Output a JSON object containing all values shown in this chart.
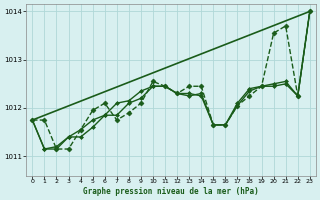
{
  "xlabel": "Graphe pression niveau de la mer (hPa)",
  "bg_color": "#d8f0f0",
  "grid_color": "#b0d8d8",
  "line_color": "#1a5c1a",
  "xlim": [
    -0.5,
    23.5
  ],
  "ylim": [
    1010.6,
    1014.15
  ],
  "yticks": [
    1011,
    1012,
    1013,
    1014
  ],
  "xticks": [
    0,
    1,
    2,
    3,
    4,
    5,
    6,
    7,
    8,
    9,
    10,
    11,
    12,
    13,
    14,
    15,
    16,
    17,
    18,
    19,
    20,
    21,
    22,
    23
  ],
  "series": [
    {
      "x": [
        0,
        1,
        2,
        3,
        4,
        5,
        6,
        7,
        8,
        9,
        10,
        11,
        12,
        13,
        14,
        15,
        16,
        17,
        18,
        19,
        20,
        21,
        22,
        23
      ],
      "y": [
        1011.75,
        1011.75,
        1011.15,
        1011.15,
        1011.55,
        1011.95,
        1012.1,
        1011.75,
        1011.9,
        1012.1,
        1012.55,
        1012.45,
        1012.3,
        1012.45,
        1012.45,
        1011.65,
        1011.65,
        1012.05,
        1012.25,
        1012.45,
        1013.55,
        1013.7,
        1012.25,
        1014.0
      ],
      "linestyle": "--",
      "marker": "D",
      "markersize": 2.5,
      "linewidth": 1.0
    },
    {
      "x": [
        0,
        1,
        2,
        3,
        4,
        5,
        6,
        7,
        8,
        9,
        10,
        11,
        12,
        13,
        14,
        15,
        16,
        17,
        18,
        19,
        20,
        21,
        22,
        23
      ],
      "y": [
        1011.75,
        1011.15,
        1011.15,
        1011.4,
        1011.4,
        1011.6,
        1011.85,
        1011.85,
        1012.1,
        1012.2,
        1012.45,
        1012.45,
        1012.3,
        1012.3,
        1012.25,
        1011.65,
        1011.65,
        1012.05,
        1012.35,
        1012.45,
        1012.45,
        1012.5,
        1012.25,
        1014.0
      ],
      "linestyle": "-",
      "marker": "D",
      "markersize": 2.0,
      "linewidth": 1.0
    },
    {
      "x": [
        0,
        1,
        2,
        3,
        4,
        5,
        6,
        7,
        8,
        9,
        10,
        11,
        12,
        13,
        14,
        15,
        16,
        17,
        18,
        19,
        20,
        21,
        22,
        23
      ],
      "y": [
        1011.75,
        1011.15,
        1011.2,
        1011.4,
        1011.55,
        1011.75,
        1011.85,
        1012.1,
        1012.15,
        1012.35,
        1012.45,
        1012.45,
        1012.3,
        1012.25,
        1012.3,
        1011.65,
        1011.65,
        1012.1,
        1012.4,
        1012.45,
        1012.5,
        1012.55,
        1012.25,
        1014.0
      ],
      "linestyle": "-",
      "marker": "D",
      "markersize": 2.0,
      "linewidth": 1.0
    },
    {
      "x": [
        0,
        23
      ],
      "y": [
        1011.75,
        1014.0
      ],
      "linestyle": "-",
      "marker": null,
      "markersize": 0,
      "linewidth": 1.2
    }
  ]
}
